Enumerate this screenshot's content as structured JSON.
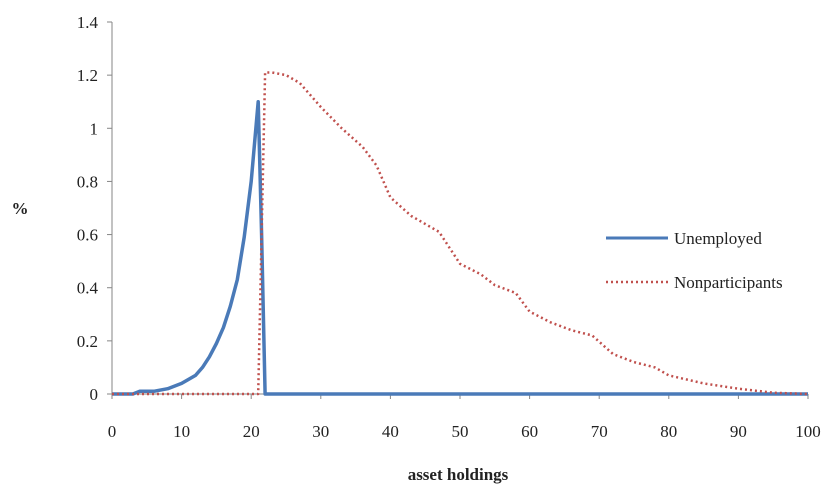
{
  "chart_data": {
    "type": "line",
    "xlabel": "asset holdings",
    "ylabel": "%",
    "xlim": [
      0,
      100
    ],
    "ylim": [
      0,
      1.4
    ],
    "x_ticks": [
      "0",
      "10",
      "20",
      "30",
      "40",
      "50",
      "60",
      "70",
      "80",
      "90",
      "100"
    ],
    "y_ticks": [
      "0",
      "0.2",
      "0.4",
      "0.6",
      "0.8",
      "1",
      "1.2",
      "1.4"
    ],
    "grid": false,
    "legend_position": "right",
    "series": [
      {
        "name": "Unemployed",
        "color": "#4a7ab8",
        "style": "solid",
        "x": [
          0,
          3,
          4,
          6,
          8,
          10,
          12,
          13,
          14,
          15,
          16,
          17,
          18,
          19,
          20,
          21,
          21.5,
          22,
          25,
          40,
          60,
          80,
          100
        ],
        "y": [
          0,
          0,
          0.01,
          0.01,
          0.02,
          0.04,
          0.07,
          0.1,
          0.14,
          0.19,
          0.25,
          0.33,
          0.43,
          0.59,
          0.8,
          1.1,
          0.6,
          0,
          0,
          0,
          0,
          0,
          0
        ]
      },
      {
        "name": "Nonparticipants",
        "color": "#c0504d",
        "style": "dotted",
        "x": [
          0,
          10,
          20,
          21,
          22,
          23,
          25,
          27,
          30,
          33,
          36,
          38,
          40,
          43,
          47,
          50,
          53,
          55,
          58,
          60,
          63,
          66,
          69,
          72,
          75,
          78,
          80,
          85,
          90,
          95,
          100
        ],
        "y": [
          0,
          0,
          0,
          0,
          1.21,
          1.21,
          1.2,
          1.17,
          1.08,
          1.0,
          0.93,
          0.86,
          0.74,
          0.67,
          0.61,
          0.49,
          0.45,
          0.41,
          0.38,
          0.31,
          0.27,
          0.24,
          0.22,
          0.15,
          0.12,
          0.1,
          0.07,
          0.04,
          0.02,
          0.005,
          0
        ]
      }
    ]
  }
}
